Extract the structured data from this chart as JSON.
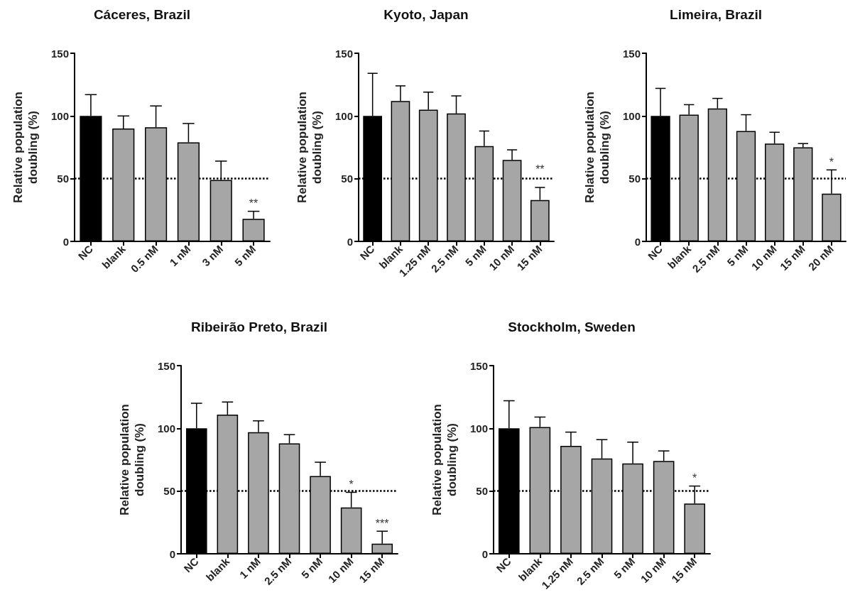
{
  "chart_data": [
    {
      "type": "bar",
      "title": "Cáceres, Brazil",
      "ylabel": "Relative population doubling (%)",
      "categories": [
        "NC",
        "blank",
        "0.5 nM",
        "1 nM",
        "3 nM",
        "5 nM"
      ],
      "values": [
        100,
        90,
        91,
        79,
        49,
        18
      ],
      "colors": [
        "#000000",
        "#a6a6a6",
        "#a6a6a6",
        "#a6a6a6",
        "#a6a6a6",
        "#a6a6a6"
      ],
      "errors": [
        [
          100,
          117
        ],
        [
          90,
          100
        ],
        [
          91,
          108
        ],
        [
          79,
          94
        ],
        [
          49,
          64
        ],
        [
          18,
          24
        ]
      ],
      "ylim": [
        0,
        150
      ],
      "yticks": [
        0,
        50,
        100,
        150
      ],
      "grid": false,
      "ref_lines": [
        {
          "axis": "y",
          "value": 50,
          "line_style": "dotted",
          "color": "#000000"
        }
      ],
      "annotations": [
        {
          "text": "**",
          "x": "5 nM",
          "y": 24
        }
      ]
    },
    {
      "type": "bar",
      "title": "Kyoto, Japan",
      "ylabel": "Relative population doubling (%)",
      "categories": [
        "NC",
        "blank",
        "1.25 nM",
        "2.5 nM",
        "5 nM",
        "10 nM",
        "15 nM"
      ],
      "values": [
        100,
        112,
        105,
        102,
        76,
        65,
        33
      ],
      "colors": [
        "#000000",
        "#a6a6a6",
        "#a6a6a6",
        "#a6a6a6",
        "#a6a6a6",
        "#a6a6a6",
        "#a6a6a6"
      ],
      "errors": [
        [
          100,
          134
        ],
        [
          112,
          124
        ],
        [
          105,
          119
        ],
        [
          102,
          116
        ],
        [
          76,
          88
        ],
        [
          65,
          73
        ],
        [
          33,
          43
        ]
      ],
      "ylim": [
        0,
        150
      ],
      "yticks": [
        0,
        50,
        100,
        150
      ],
      "grid": false,
      "ref_lines": [
        {
          "axis": "y",
          "value": 50,
          "line_style": "dotted",
          "color": "#000000"
        }
      ],
      "annotations": [
        {
          "text": "**",
          "x": "15 nM",
          "y": 51
        }
      ]
    },
    {
      "type": "bar",
      "title": "Limeira, Brazil",
      "ylabel": "Relative population doubling (%)",
      "categories": [
        "NC",
        "blank",
        "2.5 nM",
        "5 nM",
        "10 nM",
        "15 nM",
        "20 nM"
      ],
      "values": [
        100,
        101,
        106,
        88,
        78,
        75,
        38
      ],
      "colors": [
        "#000000",
        "#a6a6a6",
        "#a6a6a6",
        "#a6a6a6",
        "#a6a6a6",
        "#a6a6a6",
        "#a6a6a6"
      ],
      "errors": [
        [
          100,
          122
        ],
        [
          101,
          109
        ],
        [
          106,
          114
        ],
        [
          88,
          101
        ],
        [
          78,
          87
        ],
        [
          75,
          78
        ],
        [
          38,
          57
        ]
      ],
      "ylim": [
        0,
        150
      ],
      "yticks": [
        0,
        50,
        100,
        150
      ],
      "grid": false,
      "ref_lines": [
        {
          "axis": "y",
          "value": 50,
          "line_style": "dotted",
          "color": "#000000"
        }
      ],
      "annotations": [
        {
          "text": "*",
          "x": "20 nM",
          "y": 57
        }
      ]
    },
    {
      "type": "bar",
      "title": "Ribeirão Preto, Brazil",
      "ylabel": "Relative population doubling (%)",
      "categories": [
        "NC",
        "blank",
        "1 nM",
        "2.5 nM",
        "5 nM",
        "10 nM",
        "15 nM"
      ],
      "values": [
        100,
        111,
        97,
        88,
        62,
        37,
        8
      ],
      "colors": [
        "#000000",
        "#a6a6a6",
        "#a6a6a6",
        "#a6a6a6",
        "#a6a6a6",
        "#a6a6a6",
        "#a6a6a6"
      ],
      "errors": [
        [
          100,
          120
        ],
        [
          111,
          121
        ],
        [
          97,
          106
        ],
        [
          88,
          95
        ],
        [
          62,
          73
        ],
        [
          37,
          49
        ],
        [
          8,
          18
        ]
      ],
      "ylim": [
        0,
        150
      ],
      "yticks": [
        0,
        50,
        100,
        150
      ],
      "grid": false,
      "ref_lines": [
        {
          "axis": "y",
          "value": 50,
          "line_style": "dotted",
          "color": "#000000"
        }
      ],
      "annotations": [
        {
          "text": "*",
          "x": "10 nM",
          "y": 49
        },
        {
          "text": "***",
          "x": "15 nM",
          "y": 18
        }
      ]
    },
    {
      "type": "bar",
      "title": "Stockholm, Sweden",
      "ylabel": "Relative population doubling (%)",
      "categories": [
        "NC",
        "blank",
        "1.25 nM",
        "2.5 nM",
        "5 nM",
        "10 nM",
        "15 nM"
      ],
      "values": [
        100,
        101,
        86,
        76,
        72,
        74,
        40
      ],
      "colors": [
        "#000000",
        "#a6a6a6",
        "#a6a6a6",
        "#a6a6a6",
        "#a6a6a6",
        "#a6a6a6",
        "#a6a6a6"
      ],
      "errors": [
        [
          100,
          122
        ],
        [
          101,
          109
        ],
        [
          86,
          97
        ],
        [
          76,
          91
        ],
        [
          72,
          89
        ],
        [
          74,
          82
        ],
        [
          40,
          54
        ]
      ],
      "ylim": [
        0,
        150
      ],
      "yticks": [
        0,
        50,
        100,
        150
      ],
      "grid": false,
      "ref_lines": [
        {
          "axis": "y",
          "value": 50,
          "line_style": "dotted",
          "color": "#000000"
        }
      ],
      "annotations": [
        {
          "text": "*",
          "x": "15 nM",
          "y": 54
        }
      ]
    }
  ]
}
